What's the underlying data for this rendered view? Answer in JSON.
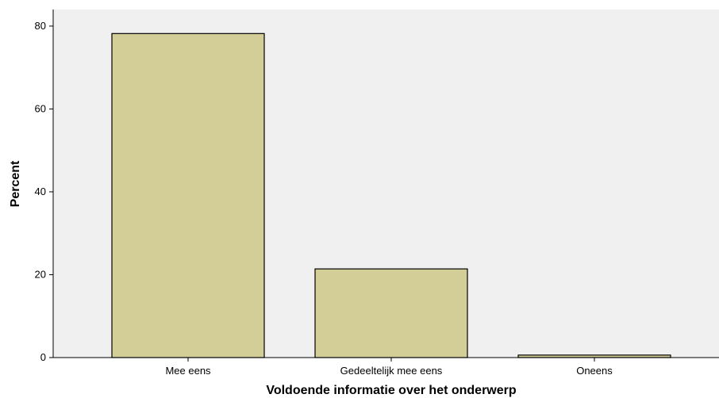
{
  "chart_data": {
    "type": "bar",
    "categories": [
      "Mee eens",
      "Gedeeltelijk mee eens",
      "Oneens"
    ],
    "values": [
      78.2,
      21.4,
      0.6
    ],
    "xlabel": "Voldoende informatie over het onderwerp",
    "ylabel": "Percent",
    "ylim": [
      0,
      84
    ],
    "yticks": [
      0,
      20,
      40,
      60,
      80
    ],
    "grid": false,
    "colors": {
      "bar_fill": "#d3ce98",
      "bar_stroke": "#000000",
      "plot_background": "#f0f0f0"
    }
  }
}
